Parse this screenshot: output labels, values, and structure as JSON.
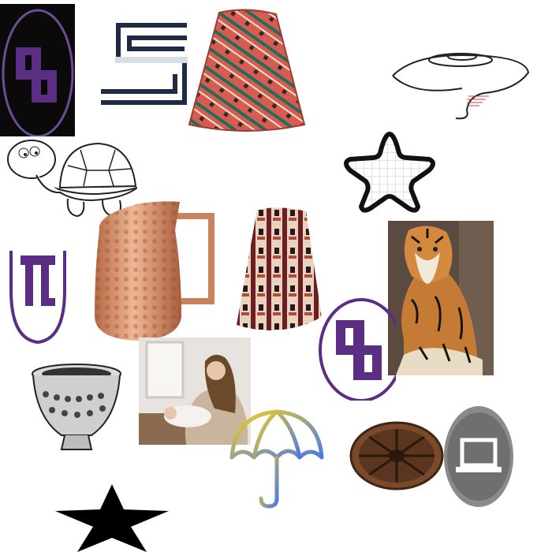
{
  "canvas": {
    "background": "#ffffff"
  },
  "items": [
    {
      "name": "swastika-oval-emblem-icon",
      "kind": "photo"
    },
    {
      "name": "stylized-s-logo-icon",
      "kind": "graphic"
    },
    {
      "name": "patterned-fabric-cap-photo",
      "kind": "photo"
    },
    {
      "name": "whirlwind-tornado-sketch-icon",
      "kind": "line-art"
    },
    {
      "name": "cartoon-turtle-sketch-icon",
      "kind": "line-art"
    },
    {
      "name": "rounded-grid-star-icon",
      "kind": "graphic"
    },
    {
      "name": "hammered-copper-pitcher-photo",
      "kind": "photo"
    },
    {
      "name": "patterned-fabric-cap-photo-2",
      "kind": "photo"
    },
    {
      "name": "tiger-photo",
      "kind": "photo"
    },
    {
      "name": "purple-emblem-icon",
      "kind": "graphic"
    },
    {
      "name": "swastika-circle-emblem-icon",
      "kind": "graphic"
    },
    {
      "name": "mother-and-baby-photo",
      "kind": "photo"
    },
    {
      "name": "ornate-metal-bowl-sketch-icon",
      "kind": "line-art"
    },
    {
      "name": "umbrella-icon",
      "kind": "graphic"
    },
    {
      "name": "wooden-wheel-photo",
      "kind": "photo"
    },
    {
      "name": "laptop-icon",
      "kind": "graphic"
    },
    {
      "name": "black-star-icon",
      "kind": "graphic"
    }
  ],
  "colors": {
    "purple": "#5b2d83",
    "copper": "#c9845f",
    "umbrella_yellow": "#f3d21b",
    "umbrella_blue": "#4a78e8",
    "tiger_orange": "#c57a35",
    "dark_bg": "#1a1a1a"
  }
}
